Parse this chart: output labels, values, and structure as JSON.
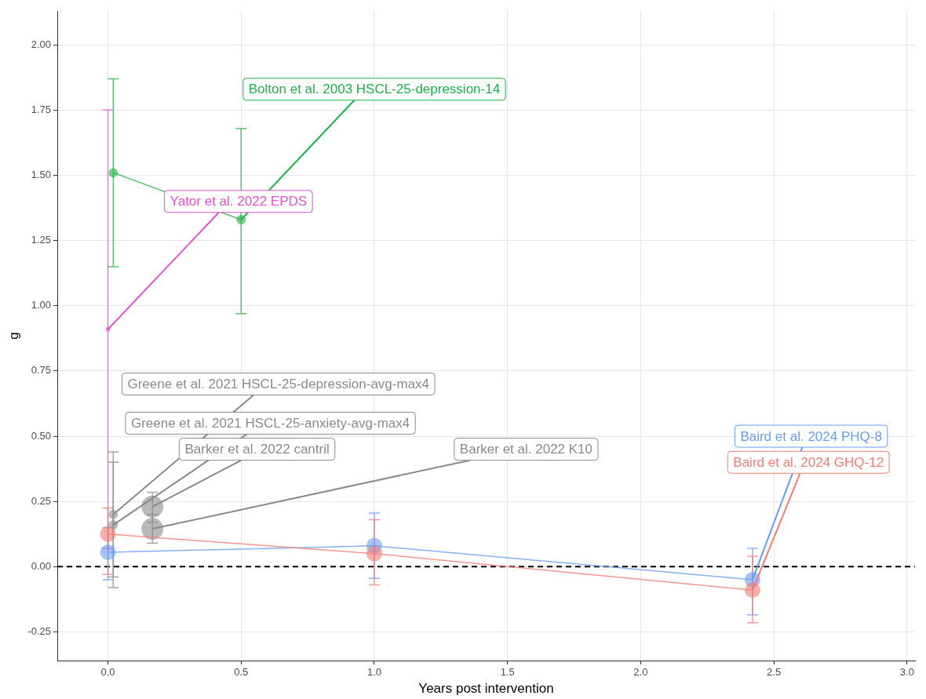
{
  "chart_data": {
    "type": "line",
    "xlabel": "Years post intervention",
    "ylabel": "g",
    "legend": false,
    "grid": true,
    "marker": "circle",
    "line_style": "solid",
    "xlim": [
      -0.19,
      3.03
    ],
    "ylim": [
      -0.36,
      2.13
    ],
    "xticks": [
      {
        "value": 0,
        "label": "0.0"
      },
      {
        "value": 0.5,
        "label": "0.5"
      },
      {
        "value": 1,
        "label": "1.0"
      },
      {
        "value": 1.5,
        "label": "1.5"
      },
      {
        "value": 2,
        "label": "2.0"
      },
      {
        "value": 2.5,
        "label": "2.5"
      },
      {
        "value": 3,
        "label": "3.0"
      }
    ],
    "yticks": [
      {
        "value": -0.25,
        "label": "-0.25"
      },
      {
        "value": 0,
        "label": "0.00"
      },
      {
        "value": 0.25,
        "label": "0.25"
      },
      {
        "value": 0.5,
        "label": "0.50"
      },
      {
        "value": 0.75,
        "label": "0.75"
      },
      {
        "value": 1,
        "label": "1.00"
      },
      {
        "value": 1.25,
        "label": "1.25"
      },
      {
        "value": 1.5,
        "label": "1.50"
      },
      {
        "value": 1.75,
        "label": "1.75"
      },
      {
        "value": 2,
        "label": "2.00"
      }
    ],
    "ref_lines": [
      {
        "axis": "y",
        "value": 0,
        "color": "#000000",
        "line_style": "dashed"
      }
    ],
    "series": [
      {
        "name": "Bolton et al. 2003 HSCL-25-depression-14",
        "color": "#1eb04a",
        "x": [
          0.02,
          0.5
        ],
        "values": [
          1.51,
          1.33
        ],
        "errors": [
          [
            1.15,
            1.87
          ],
          [
            0.97,
            1.68
          ]
        ]
      },
      {
        "name": "Yator et al. 2022 EPDS",
        "color": "#e452cc",
        "x": [
          0
        ],
        "values": [
          0.91
        ],
        "errors": [
          [
            0.07,
            1.75
          ]
        ]
      },
      {
        "name": "Greene et al. 2021 HSCL-25-depression-avg-max4",
        "color": "#8a8a8a",
        "x": [
          0.02
        ],
        "values": [
          0.2
        ],
        "errors": [
          [
            -0.08,
            0.44
          ]
        ]
      },
      {
        "name": "Greene et al. 2021 HSCL-25-anxiety-avg-max4",
        "color": "#8a8a8a",
        "x": [
          0.02
        ],
        "values": [
          0.16
        ],
        "errors": [
          [
            -0.04,
            0.4
          ]
        ]
      },
      {
        "name": "Barker et al. 2022 cantril",
        "color": "#8a8a8a",
        "x": [
          0.167
        ],
        "values": [
          0.23
        ],
        "errors": [
          [
            0.17,
            0.285
          ]
        ]
      },
      {
        "name": "Barker et al. 2022 K10",
        "color": "#8a8a8a",
        "x": [
          0.167
        ],
        "values": [
          0.145
        ],
        "errors": [
          [
            0.09,
            0.2
          ]
        ]
      },
      {
        "name": "Baird et al. 2024 PHQ-8",
        "color": "#6a9cf2",
        "x": [
          0,
          1,
          2.42
        ],
        "values": [
          0.055,
          0.08,
          -0.05
        ],
        "errors": [
          [
            -0.05,
            0.15
          ],
          [
            -0.045,
            0.205
          ],
          [
            -0.185,
            0.07
          ]
        ]
      },
      {
        "name": "Baird et al. 2024 GHQ-12",
        "color": "#f07c74",
        "x": [
          0,
          1,
          2.42
        ],
        "values": [
          0.125,
          0.05,
          -0.09
        ],
        "errors": [
          [
            -0.03,
            0.225
          ],
          [
            -0.07,
            0.18
          ],
          [
            -0.215,
            0.04
          ]
        ]
      }
    ]
  }
}
